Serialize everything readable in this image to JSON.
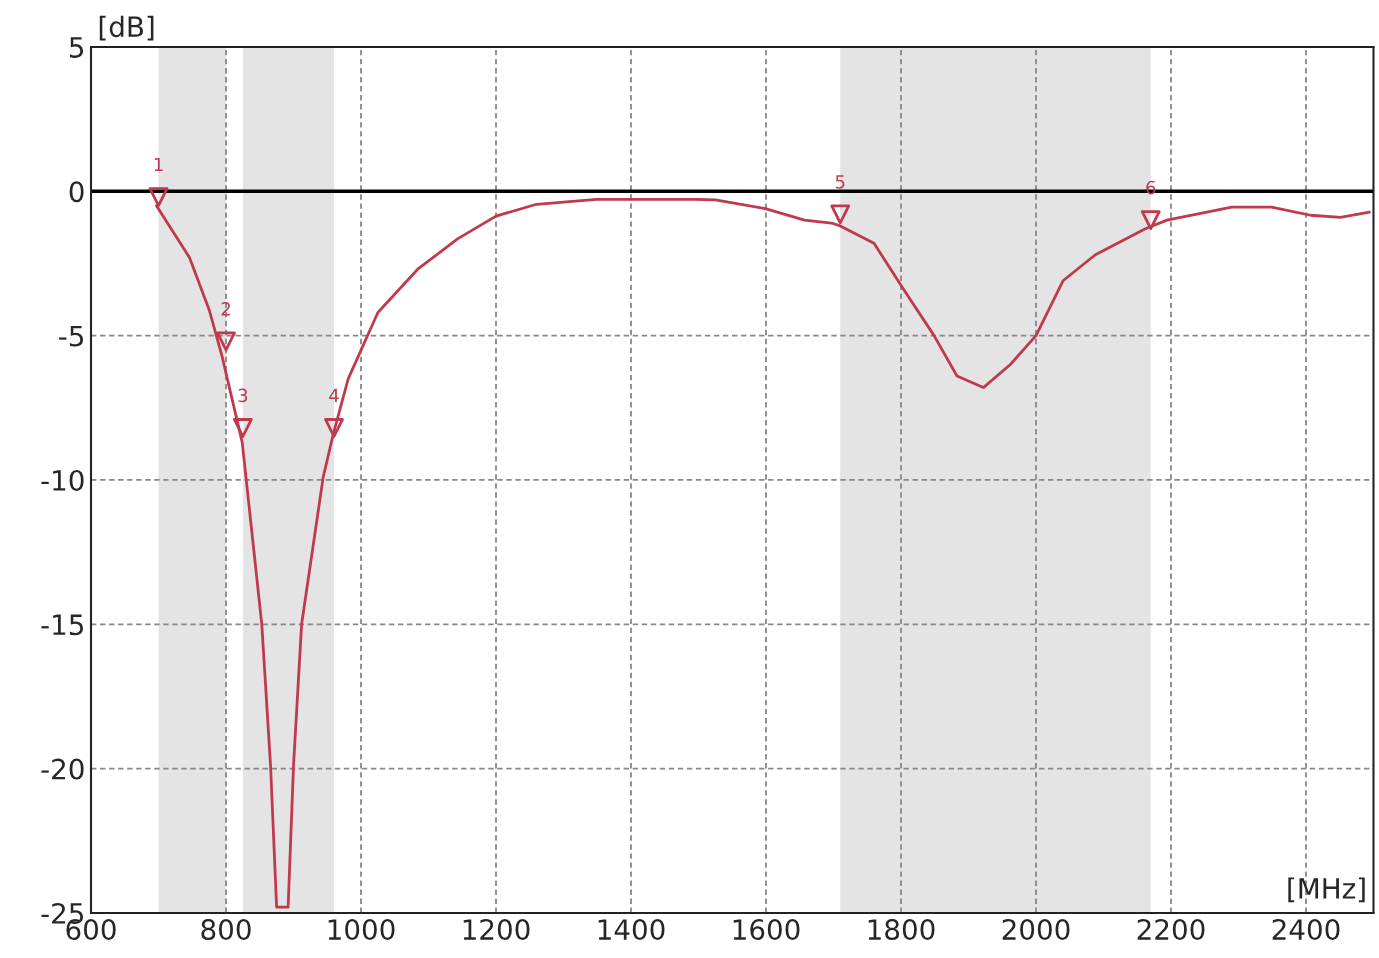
{
  "chart_data": {
    "type": "line",
    "xlabel": "[MHz]",
    "ylabel": "[dB]",
    "xlim": [
      600,
      2500
    ],
    "xticks": [
      600,
      800,
      1000,
      1200,
      1400,
      1600,
      1800,
      2000,
      2200,
      2400
    ],
    "ylim": [
      -25,
      5
    ],
    "yticks": [
      5,
      0,
      -5,
      -10,
      -15,
      -20,
      -25
    ],
    "grid": true,
    "line_style": "solid",
    "series": [
      {
        "color": "#c0394c",
        "marker": "none",
        "x": [
          697,
          746,
          775,
          794,
          824,
          853,
          866,
          875,
          892,
          900,
          912,
          944,
          959,
          981,
          1025,
          1084,
          1143,
          1200,
          1260,
          1349,
          1496,
          1525,
          1599,
          1657,
          1697,
          1710,
          1760,
          1804,
          1849,
          1883,
          1922,
          1962,
          2000,
          2040,
          2088,
          2162,
          2194,
          2290,
          2349,
          2407,
          2451,
          2494
        ],
        "values": [
          -0.5,
          -2.3,
          -4.1,
          -5.7,
          -8.7,
          -15,
          -19.9,
          -24.8,
          -24.8,
          -19.9,
          -15,
          -9.9,
          -8.4,
          -6.5,
          -4.2,
          -2.7,
          -1.65,
          -0.86,
          -0.45,
          -0.28,
          -0.28,
          -0.3,
          -0.6,
          -1.0,
          -1.1,
          -1.2,
          -1.8,
          -3.4,
          -5.0,
          -6.4,
          -6.8,
          -6.0,
          -5.0,
          -3.1,
          -2.2,
          -1.3,
          -1.0,
          -0.55,
          -0.55,
          -0.83,
          -0.9,
          -0.72
        ]
      },
      {
        "type": "scatter",
        "color": "#c0394c",
        "marker": "triangle",
        "x": [
          700,
          800,
          825,
          960,
          1710,
          2170
        ],
        "values": [
          -0.2,
          -5.2,
          -8.2,
          -8.2,
          -0.8,
          -1.0
        ]
      }
    ],
    "ref_lines": [
      {
        "axis": "y",
        "value": 0,
        "color": "#000000",
        "line_style": "solid"
      }
    ],
    "bands": [
      {
        "axis": "x",
        "from": 700,
        "to": 800,
        "color": "#e4e4e4"
      },
      {
        "axis": "x",
        "from": 825,
        "to": 960,
        "color": "#e4e4e4"
      },
      {
        "axis": "x",
        "from": 1710,
        "to": 2170,
        "color": "#e4e4e4"
      }
    ],
    "annotations": [
      {
        "text": "1",
        "x": 700,
        "y": -0.2
      },
      {
        "text": "2",
        "x": 800,
        "y": -5.2
      },
      {
        "text": "3",
        "x": 825,
        "y": -8.2
      },
      {
        "text": "4",
        "x": 960,
        "y": -8.2
      },
      {
        "text": "5",
        "x": 1710,
        "y": -0.8
      },
      {
        "text": "6",
        "x": 2170,
        "y": -1.0
      }
    ]
  }
}
